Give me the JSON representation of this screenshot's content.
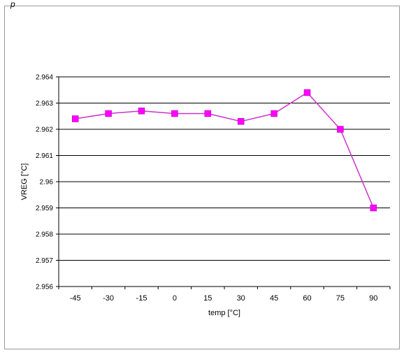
{
  "header": {
    "fragment": "p"
  },
  "chart_data": {
    "type": "line",
    "xlabel": "temp [°C]",
    "ylabel": "VREG [°C]",
    "categories": [
      "-45",
      "-30",
      "-15",
      "0",
      "15",
      "30",
      "45",
      "60",
      "75",
      "90"
    ],
    "series": [
      {
        "values": [
          2.9624,
          2.9626,
          2.9627,
          2.9626,
          2.9626,
          2.9623,
          2.9626,
          2.9634,
          2.962,
          2.959
        ]
      }
    ],
    "ylim": [
      2.956,
      2.964
    ],
    "yticks": [
      2.956,
      2.957,
      2.958,
      2.959,
      2.96,
      2.961,
      2.962,
      2.963,
      2.964
    ],
    "ytick_labels": [
      "2.956",
      "2.957",
      "2.958",
      "2.959",
      "2.96",
      "2.961",
      "2.962",
      "2.963",
      "2.964"
    ],
    "grid": true,
    "colors": {
      "series": "#cc33cc",
      "marker": "#ff00ff",
      "grid": "#000000"
    }
  }
}
